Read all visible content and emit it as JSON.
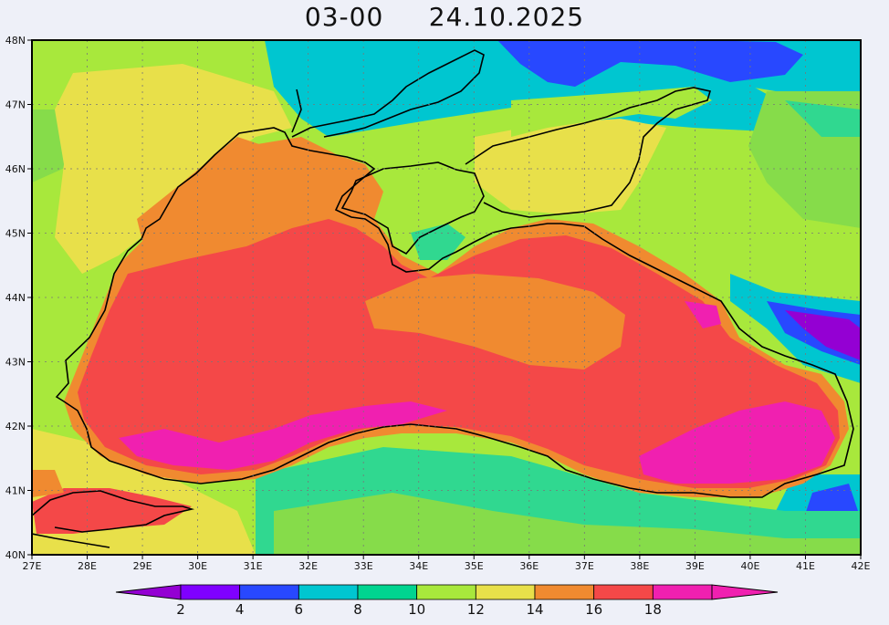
{
  "title": "03-00     24.10.2025",
  "map": {
    "lat_labels": [
      "48N",
      "47N",
      "46N",
      "45N",
      "44N",
      "43N",
      "42N",
      "41N",
      "40N"
    ],
    "lon_labels": [
      "27E",
      "28E",
      "29E",
      "30E",
      "31E",
      "32E",
      "33E",
      "34E",
      "35E",
      "36E",
      "37E",
      "38E",
      "39E",
      "40E",
      "41E",
      "42E"
    ],
    "lon_range": [
      27,
      42
    ],
    "lat_range": [
      40,
      48
    ],
    "gridlines": true
  },
  "colorbar": {
    "labels": [
      "2",
      "4",
      "6",
      "8",
      "10",
      "12",
      "14",
      "16",
      "18"
    ],
    "colors": [
      "#9400d3",
      "#7f00ff",
      "#2848ff",
      "#00c6d0",
      "#00d490",
      "#a8e83c",
      "#e8e04a",
      "#f08a30",
      "#f44848",
      "#f020b0"
    ]
  },
  "palette": {
    "lt_green": "#a8e83c",
    "green": "#86dc4a",
    "teal_green": "#30d890",
    "cyan": "#00c6d0",
    "blue": "#2848ff",
    "purple": "#9400d3",
    "yellow": "#e8e04a",
    "orange": "#f08a30",
    "red": "#f44848",
    "magenta": "#f020b0"
  }
}
